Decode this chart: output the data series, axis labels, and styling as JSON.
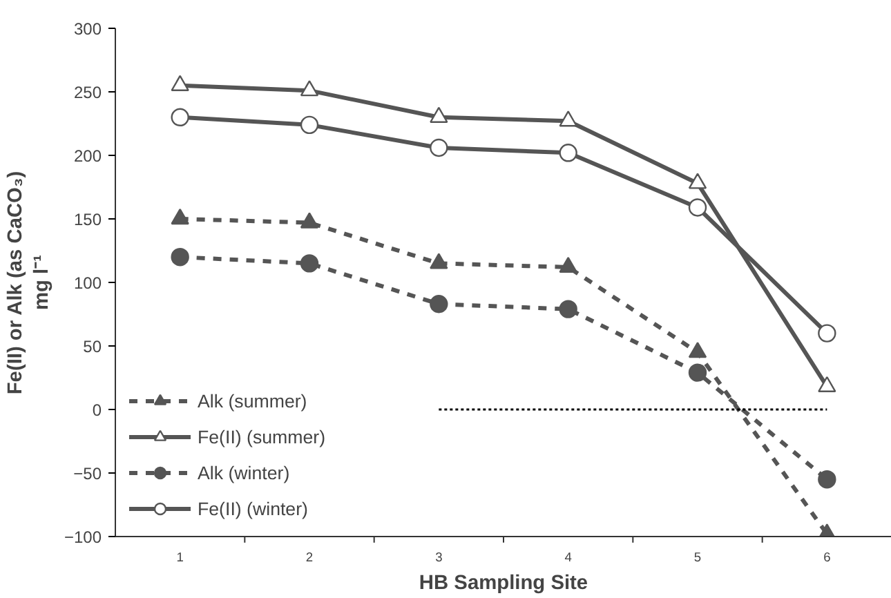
{
  "chart_data": {
    "type": "line",
    "xlabel": "HB Sampling Site",
    "ylabel": "Fe(II) or Alk (as CaCO₃)\nmg l⁻¹",
    "categories": [
      "1",
      "2",
      "3",
      "4",
      "5",
      "6"
    ],
    "ylim": [
      -100,
      300
    ],
    "yticks": [
      -100,
      -50,
      0,
      50,
      100,
      150,
      200,
      250,
      300
    ],
    "grid": false,
    "legend": "bottom left",
    "series": [
      {
        "name": "Alk (summer)",
        "color": "#555555",
        "values": [
          150,
          147,
          115,
          112,
          45,
          -98
        ],
        "marker": "triangle",
        "line_style": "dashed"
      },
      {
        "name": "Fe(II) (summer)",
        "color": "#555555",
        "values": [
          255,
          251,
          230,
          227,
          178,
          18
        ],
        "marker": "triangle",
        "colors": [
          "#ffffff",
          "#ffffff",
          "#ffffff",
          "#ffffff",
          "#ffffff",
          "#ffffff"
        ],
        "line_style": "solid"
      },
      {
        "name": "Alk (winter)",
        "color": "#555555",
        "values": [
          120,
          115,
          83,
          79,
          29,
          -55
        ],
        "marker": "circle",
        "line_style": "dashed"
      },
      {
        "name": "Fe(II) (winter)",
        "color": "#555555",
        "values": [
          230,
          224,
          206,
          202,
          159,
          60
        ],
        "marker": "circle",
        "colors": [
          "#ffffff",
          "#ffffff",
          "#ffffff",
          "#ffffff",
          "#ffffff",
          "#ffffff"
        ],
        "line_style": "solid"
      },
      {
        "color": "#000000",
        "values": [
          null,
          null,
          0,
          0,
          0,
          0
        ],
        "marker": "none",
        "line_style": "dotted"
      }
    ]
  }
}
